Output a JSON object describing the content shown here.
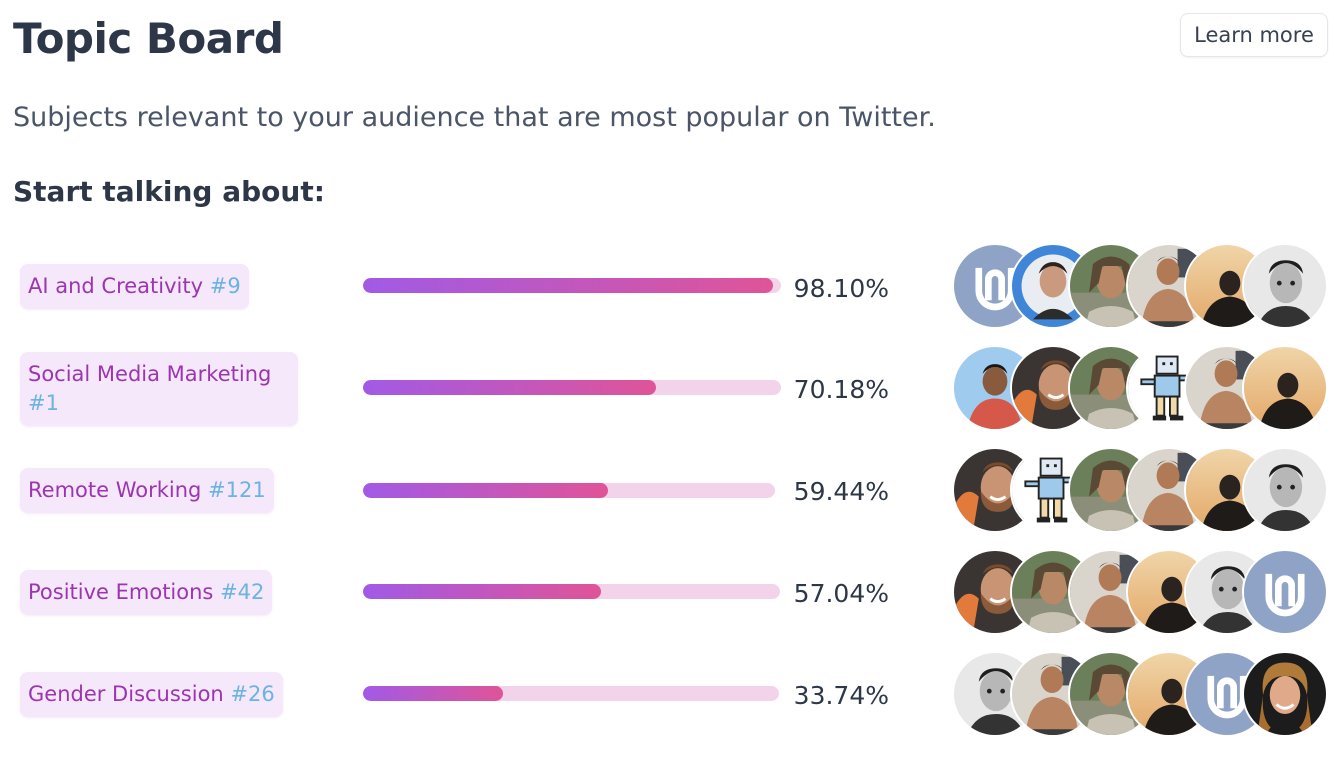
{
  "header": {
    "title": "Topic Board",
    "learn_more_label": "Learn more",
    "subtitle": "Subjects relevant to your audience that are most popular on Twitter.",
    "section_heading": "Start talking about:"
  },
  "colors": {
    "pill_bg": "#f5e8fb",
    "pill_text": "#9b35b0",
    "rank_text": "#6bb3e3",
    "bar_track": "#f2d3ea",
    "bar_start": "#a15ae6",
    "bar_end": "#e05498"
  },
  "topics": [
    {
      "name": "AI and Creativity",
      "rank": "#9",
      "percent_label": "98.10%",
      "percent_value": 98.1,
      "avatars": [
        "logo-avatar",
        "blue-portrait-avatar",
        "dreadlocks-avatar",
        "shirtless-avatar",
        "sunset-silhouette-avatar",
        "bw-portrait-avatar"
      ]
    },
    {
      "name": "Social Media Marketing",
      "rank": "#1",
      "percent_label": "70.18%",
      "percent_value": 70.18,
      "avatars": [
        "red-shirt-avatar",
        "bearded-smile-avatar",
        "dreadlocks-avatar",
        "pixel-art-avatar",
        "shirtless-avatar",
        "sunset-silhouette-avatar"
      ]
    },
    {
      "name": "Remote Working",
      "rank": "#121",
      "percent_label": "59.44%",
      "percent_value": 59.44,
      "avatars": [
        "bearded-smile-avatar",
        "pixel-art-avatar",
        "dreadlocks-avatar",
        "shirtless-avatar",
        "sunset-silhouette-avatar",
        "bw-portrait-avatar"
      ]
    },
    {
      "name": "Positive Emotions",
      "rank": "#42",
      "percent_label": "57.04%",
      "percent_value": 57.04,
      "avatars": [
        "bearded-smile-avatar",
        "dreadlocks-avatar",
        "shirtless-avatar",
        "sunset-silhouette-avatar",
        "bw-portrait-avatar",
        "logo-avatar"
      ]
    },
    {
      "name": "Gender Discussion",
      "rank": "#26",
      "percent_label": "33.74%",
      "percent_value": 33.74,
      "avatars": [
        "bw-portrait-avatar",
        "shirtless-avatar",
        "dreadlocks-avatar",
        "sunset-silhouette-avatar",
        "logo-avatar",
        "curly-hair-avatar"
      ]
    }
  ]
}
